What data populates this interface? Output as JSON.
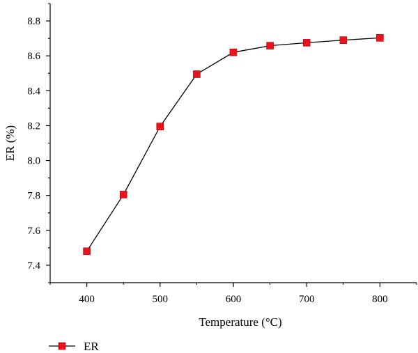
{
  "chart_data": {
    "type": "line",
    "xlabel": "Temperature (°C)",
    "ylabel": "ER (%)",
    "x": [
      400,
      450,
      500,
      550,
      600,
      650,
      700,
      750,
      800
    ],
    "x_ticks": [
      400,
      500,
      600,
      700,
      800
    ],
    "y_ticks": [
      7.4,
      7.6,
      7.8,
      8.0,
      8.2,
      8.4,
      8.6,
      8.8
    ],
    "xlim": [
      350,
      850
    ],
    "ylim": [
      7.3,
      8.9
    ],
    "grid": false,
    "legend_position": "bottom-left",
    "series": [
      {
        "name": "ER",
        "marker": "square",
        "marker_color": "#e8141b",
        "line_color": "#000000",
        "values": [
          7.48,
          7.805,
          8.195,
          8.495,
          8.62,
          8.658,
          8.675,
          8.69,
          8.703
        ]
      }
    ]
  }
}
